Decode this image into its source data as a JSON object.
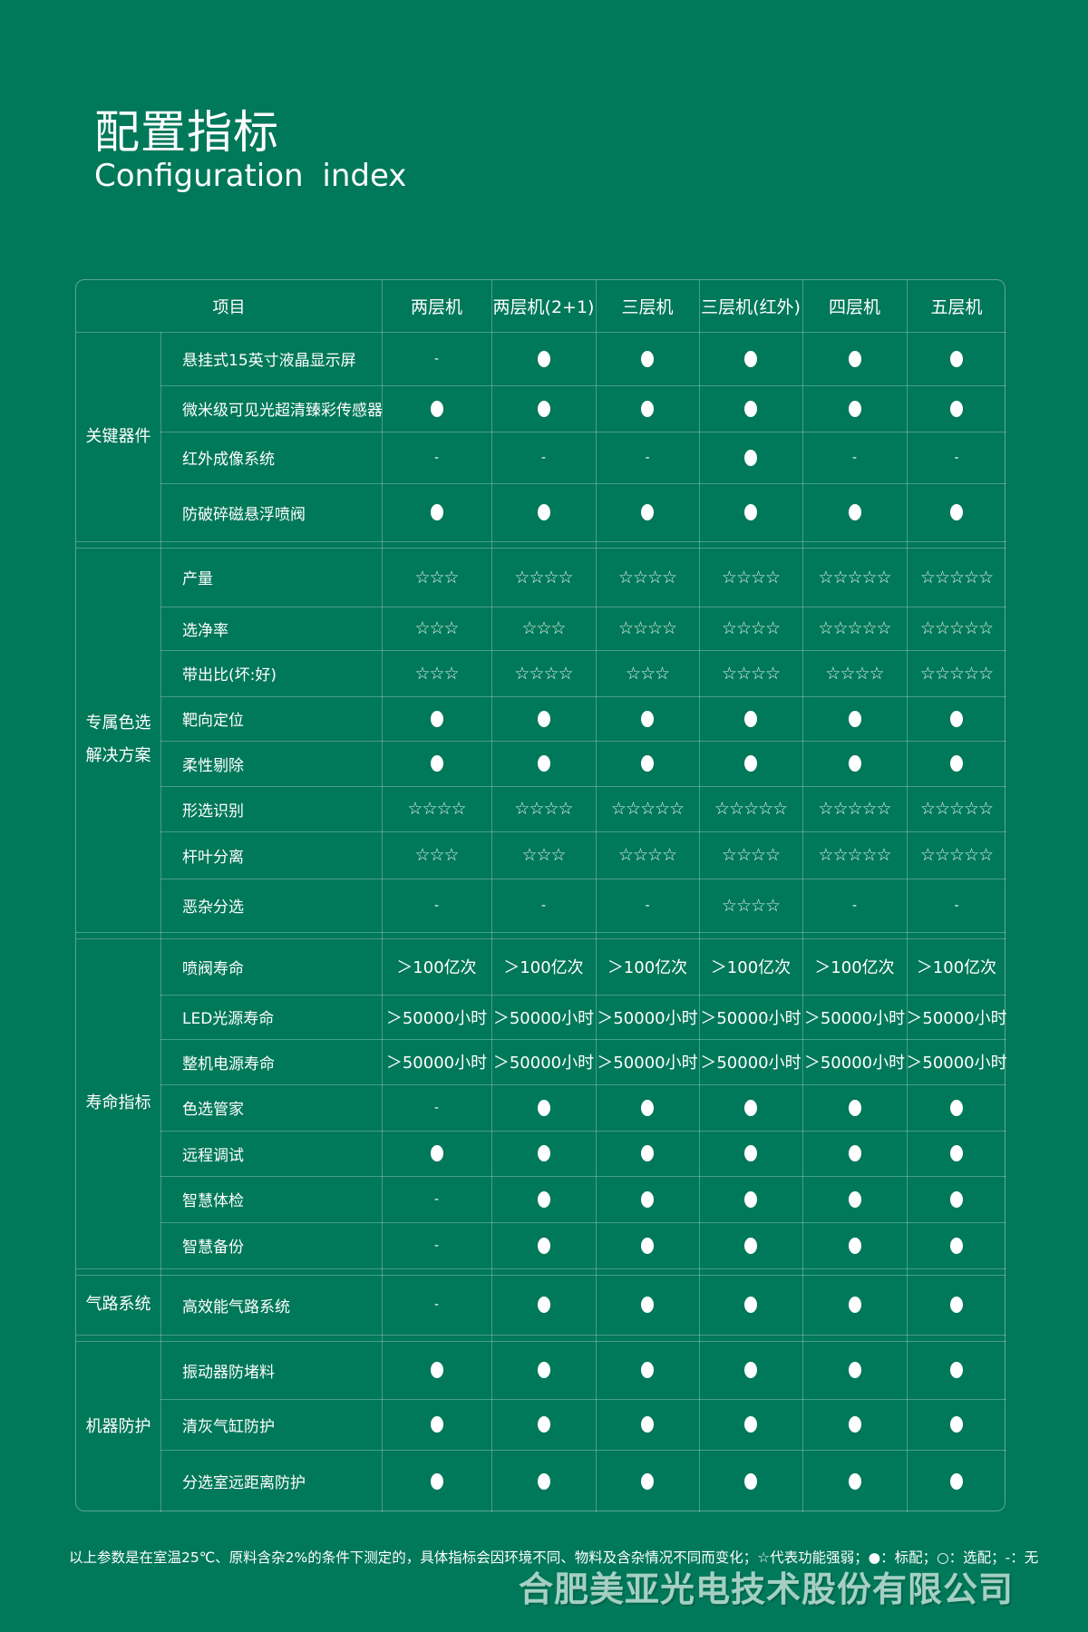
{
  "header": {
    "title": "配置指标",
    "subtitle": "Configuration index"
  },
  "table": {
    "item_header": "项目",
    "models": [
      "两层机",
      "两层机(2+1)",
      "三层机",
      "三层机(红外)",
      "四层机",
      "五层机"
    ],
    "groups": [
      {
        "name": "关键器件",
        "rows": [
          {
            "label": "悬挂式15英寸液晶显示屏",
            "values": [
              "-",
              "●",
              "●",
              "●",
              "●",
              "●"
            ]
          },
          {
            "label": "微米级可见光超清臻彩传感器",
            "values": [
              "●",
              "●",
              "●",
              "●",
              "●",
              "●"
            ]
          },
          {
            "label": "红外成像系统",
            "values": [
              "-",
              "-",
              "-",
              "●",
              "-",
              "-"
            ]
          },
          {
            "label": "防破碎磁悬浮喷阀",
            "values": [
              "●",
              "●",
              "●",
              "●",
              "●",
              "●"
            ]
          }
        ]
      },
      {
        "name": "专属色选\n解决方案",
        "rows": [
          {
            "label": "产量",
            "values": [
              "☆☆☆",
              "☆☆☆☆",
              "☆☆☆☆",
              "☆☆☆☆",
              "☆☆☆☆☆",
              "☆☆☆☆☆"
            ]
          },
          {
            "label": "选净率",
            "values": [
              "☆☆☆",
              "☆☆☆",
              "☆☆☆☆",
              "☆☆☆☆",
              "☆☆☆☆☆",
              "☆☆☆☆☆"
            ]
          },
          {
            "label": "带出比(坏:好)",
            "values": [
              "☆☆☆",
              "☆☆☆☆",
              "☆☆☆",
              "☆☆☆☆",
              "☆☆☆☆",
              "☆☆☆☆☆"
            ]
          },
          {
            "label": "靶向定位",
            "values": [
              "●",
              "●",
              "●",
              "●",
              "●",
              "●"
            ]
          },
          {
            "label": "柔性剔除",
            "values": [
              "●",
              "●",
              "●",
              "●",
              "●",
              "●"
            ]
          },
          {
            "label": "形选识别",
            "values": [
              "☆☆☆☆",
              "☆☆☆☆",
              "☆☆☆☆☆",
              "☆☆☆☆☆",
              "☆☆☆☆☆",
              "☆☆☆☆☆"
            ]
          },
          {
            "label": "杆叶分离",
            "values": [
              "☆☆☆",
              "☆☆☆",
              "☆☆☆☆",
              "☆☆☆☆",
              "☆☆☆☆☆",
              "☆☆☆☆☆"
            ]
          },
          {
            "label": "恶杂分选",
            "values": [
              "-",
              "-",
              "-",
              "☆☆☆☆",
              "-",
              "-"
            ]
          }
        ]
      },
      {
        "name": "寿命指标",
        "rows": [
          {
            "label": "喷阀寿命",
            "values": [
              "＞100亿次",
              "＞100亿次",
              "＞100亿次",
              "＞100亿次",
              "＞100亿次",
              "＞100亿次"
            ]
          },
          {
            "label": "LED光源寿命",
            "values": [
              "＞50000小时",
              "＞50000小时",
              "＞50000小时",
              "＞50000小时",
              "＞50000小时",
              "＞50000小时"
            ]
          },
          {
            "label": "整机电源寿命",
            "values": [
              "＞50000小时",
              "＞50000小时",
              "＞50000小时",
              "＞50000小时",
              "＞50000小时",
              "＞50000小时"
            ]
          },
          {
            "label": "色选管家",
            "values": [
              "-",
              "●",
              "●",
              "●",
              "●",
              "●"
            ]
          },
          {
            "label": "远程调试",
            "values": [
              "●",
              "●",
              "●",
              "●",
              "●",
              "●"
            ]
          },
          {
            "label": "智慧体检",
            "values": [
              "-",
              "●",
              "●",
              "●",
              "●",
              "●"
            ]
          },
          {
            "label": "智慧备份",
            "values": [
              "-",
              "●",
              "●",
              "●",
              "●",
              "●"
            ]
          }
        ]
      },
      {
        "name": "气路系统",
        "rows": [
          {
            "label": "高效能气路系统",
            "values": [
              "-",
              "●",
              "●",
              "●",
              "●",
              "●"
            ]
          }
        ]
      },
      {
        "name": "机器防护",
        "rows": [
          {
            "label": "振动器防堵料",
            "values": [
              "●",
              "●",
              "●",
              "●",
              "●",
              "●"
            ]
          },
          {
            "label": "清灰气缸防护",
            "values": [
              "●",
              "●",
              "●",
              "●",
              "●",
              "●"
            ]
          },
          {
            "label": "分选室远距离防护",
            "values": [
              "●",
              "●",
              "●",
              "●",
              "●",
              "●"
            ]
          }
        ]
      }
    ]
  },
  "footer": {
    "note": "以上参数是在室温25℃、原料含杂2%的条件下测定的，具体指标会因环境不同、物料及含杂情况不同而变化；☆代表功能强弱；●：标配；○：选配；-：无",
    "company": "合肥美亚光电技术股份有限公司"
  },
  "colors": {
    "background": "#00785a",
    "text": "#ffffff"
  }
}
